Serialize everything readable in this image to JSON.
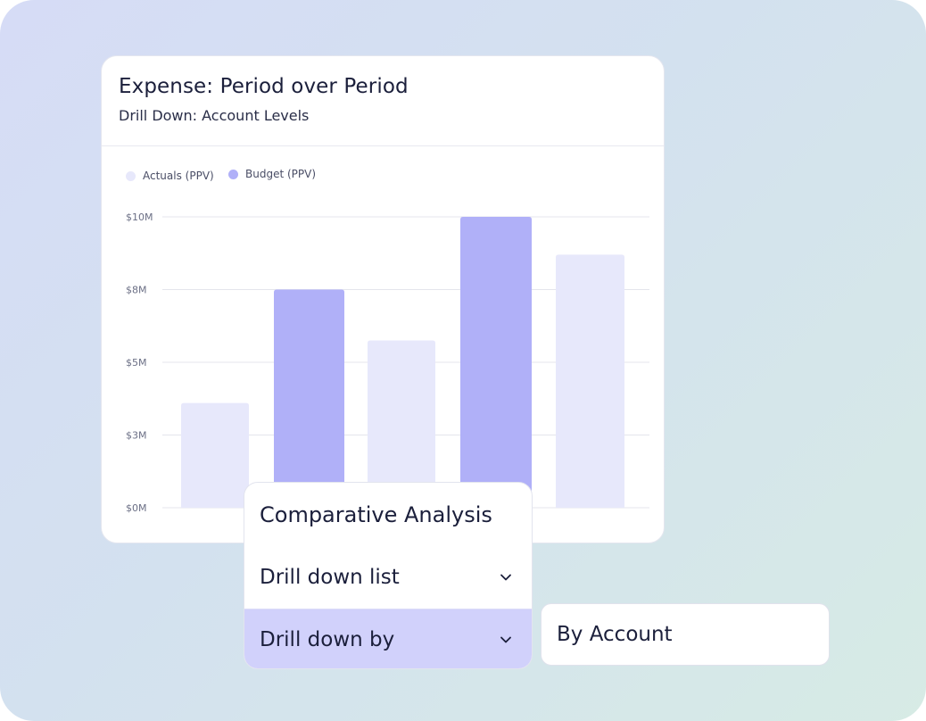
{
  "card": {
    "title": "Expense: Period over Period",
    "subtitle": "Drill Down: Account Levels"
  },
  "colors": {
    "actuals": "#e7e8fb",
    "budget": "#b0b0f8",
    "selected_row": "#d1d1fb",
    "text_dark": "#1b1f3b"
  },
  "chart_data": {
    "type": "bar",
    "series": [
      {
        "name": "Actuals (PPV)",
        "color": "#e7e8fb"
      },
      {
        "name": "Budget (PPV)",
        "color": "#b0b0f8"
      }
    ],
    "bars": [
      {
        "series": "Actuals (PPV)",
        "value": 3.6
      },
      {
        "series": "Budget (PPV)",
        "value": 7.5
      },
      {
        "series": "Actuals (PPV)",
        "value": 5.75
      },
      {
        "series": "Budget (PPV)",
        "value": 10.0
      },
      {
        "series": "Actuals (PPV)",
        "value": 8.7
      }
    ],
    "y_ticks": [
      {
        "value": 0,
        "label": "$0M"
      },
      {
        "value": 2.5,
        "label": "$3M"
      },
      {
        "value": 5,
        "label": "$5M"
      },
      {
        "value": 7.5,
        "label": "$8M"
      },
      {
        "value": 10,
        "label": "$10M"
      }
    ],
    "ylim": [
      0,
      10
    ],
    "grid": true,
    "legend_position": "top-left"
  },
  "menu": {
    "heading": "Comparative Analysis",
    "items": [
      {
        "label": "Drill down list",
        "icon": "chevron-down-icon"
      },
      {
        "label": "Drill down by",
        "icon": "chevron-down-icon",
        "selected": true
      }
    ]
  },
  "side_option": {
    "label": "By Account"
  }
}
